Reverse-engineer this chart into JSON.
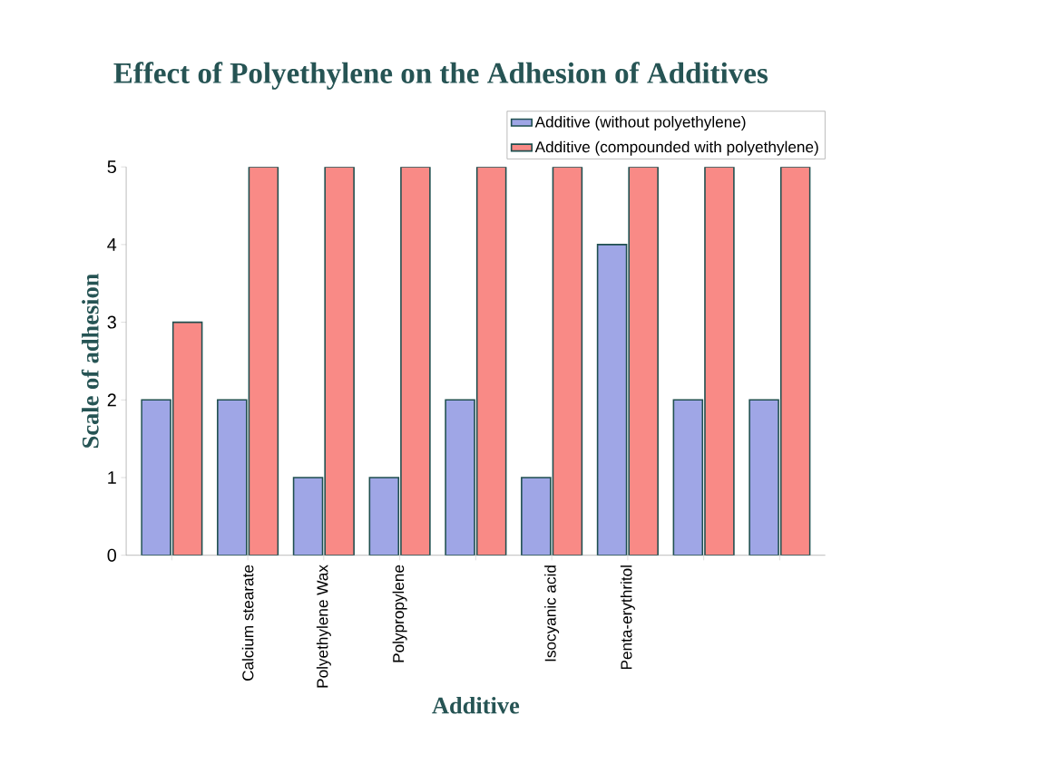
{
  "chart_data": {
    "type": "bar",
    "title": "Effect of Polyethylene on the Adhesion of Additives",
    "xlabel": "Additive",
    "ylabel": "Scale of adhesion",
    "categories": [
      null,
      "Calcium stearate",
      "Polyethylene Wax",
      "Polypropylene",
      null,
      "Isocyanic acid",
      "Penta-erythritol",
      null,
      null
    ],
    "series": [
      {
        "name": "Additive (without polyethylene)",
        "color": "#9fa6e6",
        "values": [
          2,
          2,
          1,
          1,
          2,
          1,
          4,
          2,
          2
        ]
      },
      {
        "name": "Additive (compounded with polyethylene)",
        "color": "#f98a86",
        "values": [
          3,
          5,
          5,
          5,
          5,
          5,
          5,
          5,
          5
        ]
      }
    ],
    "ylim": [
      0,
      5
    ],
    "yticks": [
      0,
      1,
      2,
      3,
      4,
      5
    ],
    "grid": false,
    "legend": "top right"
  }
}
